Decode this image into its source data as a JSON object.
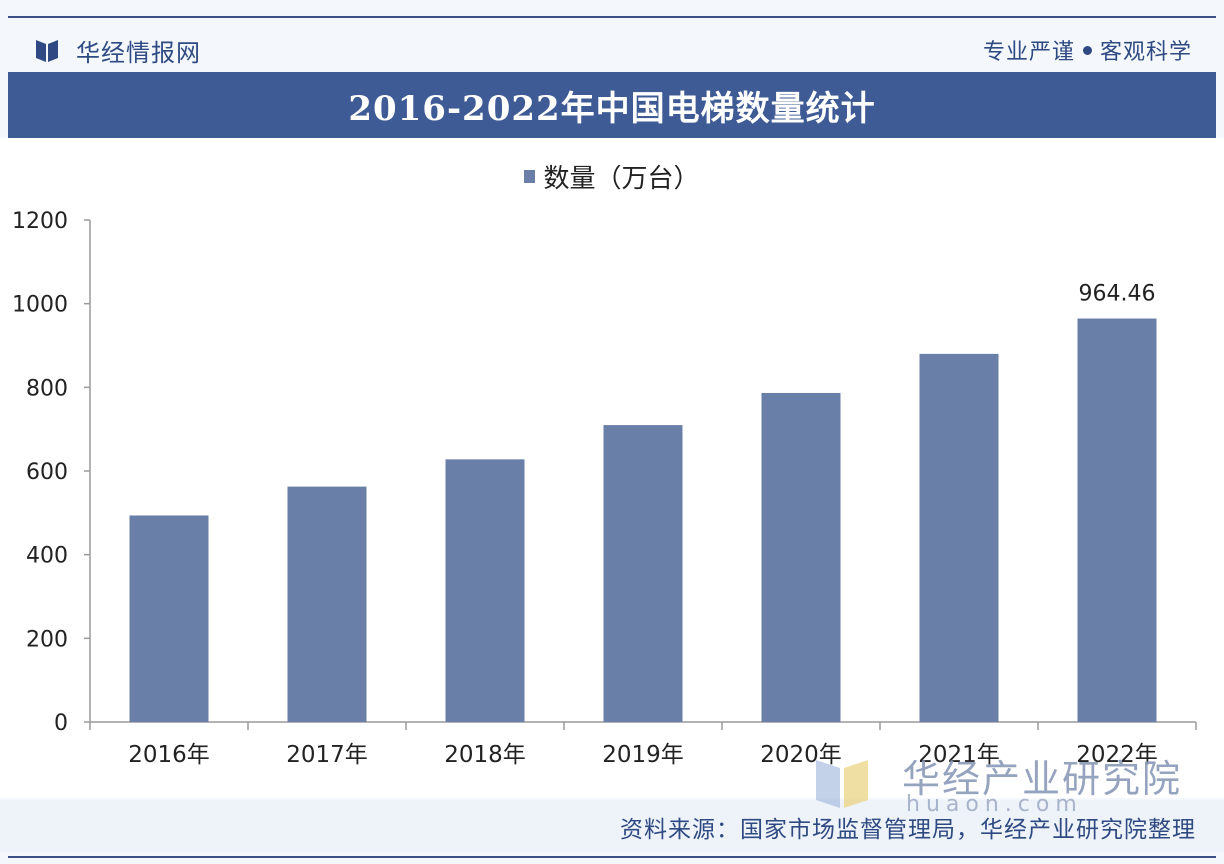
{
  "header": {
    "brand_name": "华经情报网",
    "slogan_left": "专业严谨",
    "slogan_right": "客观科学"
  },
  "title": "2016-2022年中国电梯数量统计",
  "watermark": {
    "text": "华经产业研究院",
    "url": "huaon.com"
  },
  "source": "资料来源：国家市场监督管理局，华经产业研究院整理",
  "colors": {
    "bar": "#6a7fa8",
    "title_bg": "#3f5b96",
    "brand": "#2f4a82"
  },
  "chart_data": {
    "type": "bar",
    "title": "2016-2022年中国电梯数量统计",
    "categories": [
      "2016年",
      "2017年",
      "2018年",
      "2019年",
      "2020年",
      "2021年",
      "2022年"
    ],
    "series": [
      {
        "name": "数量（万台）",
        "values": [
          493.69,
          562.7,
          627.83,
          709.75,
          786.55,
          879.98,
          964.46
        ]
      }
    ],
    "data_labels": {
      "2022年": "964.46"
    },
    "y_ticks": [
      0,
      200,
      400,
      600,
      800,
      1000,
      1200
    ],
    "ylim": [
      0,
      1200
    ],
    "xlabel": "",
    "ylabel": "",
    "legend": "top-center",
    "grid": false
  }
}
